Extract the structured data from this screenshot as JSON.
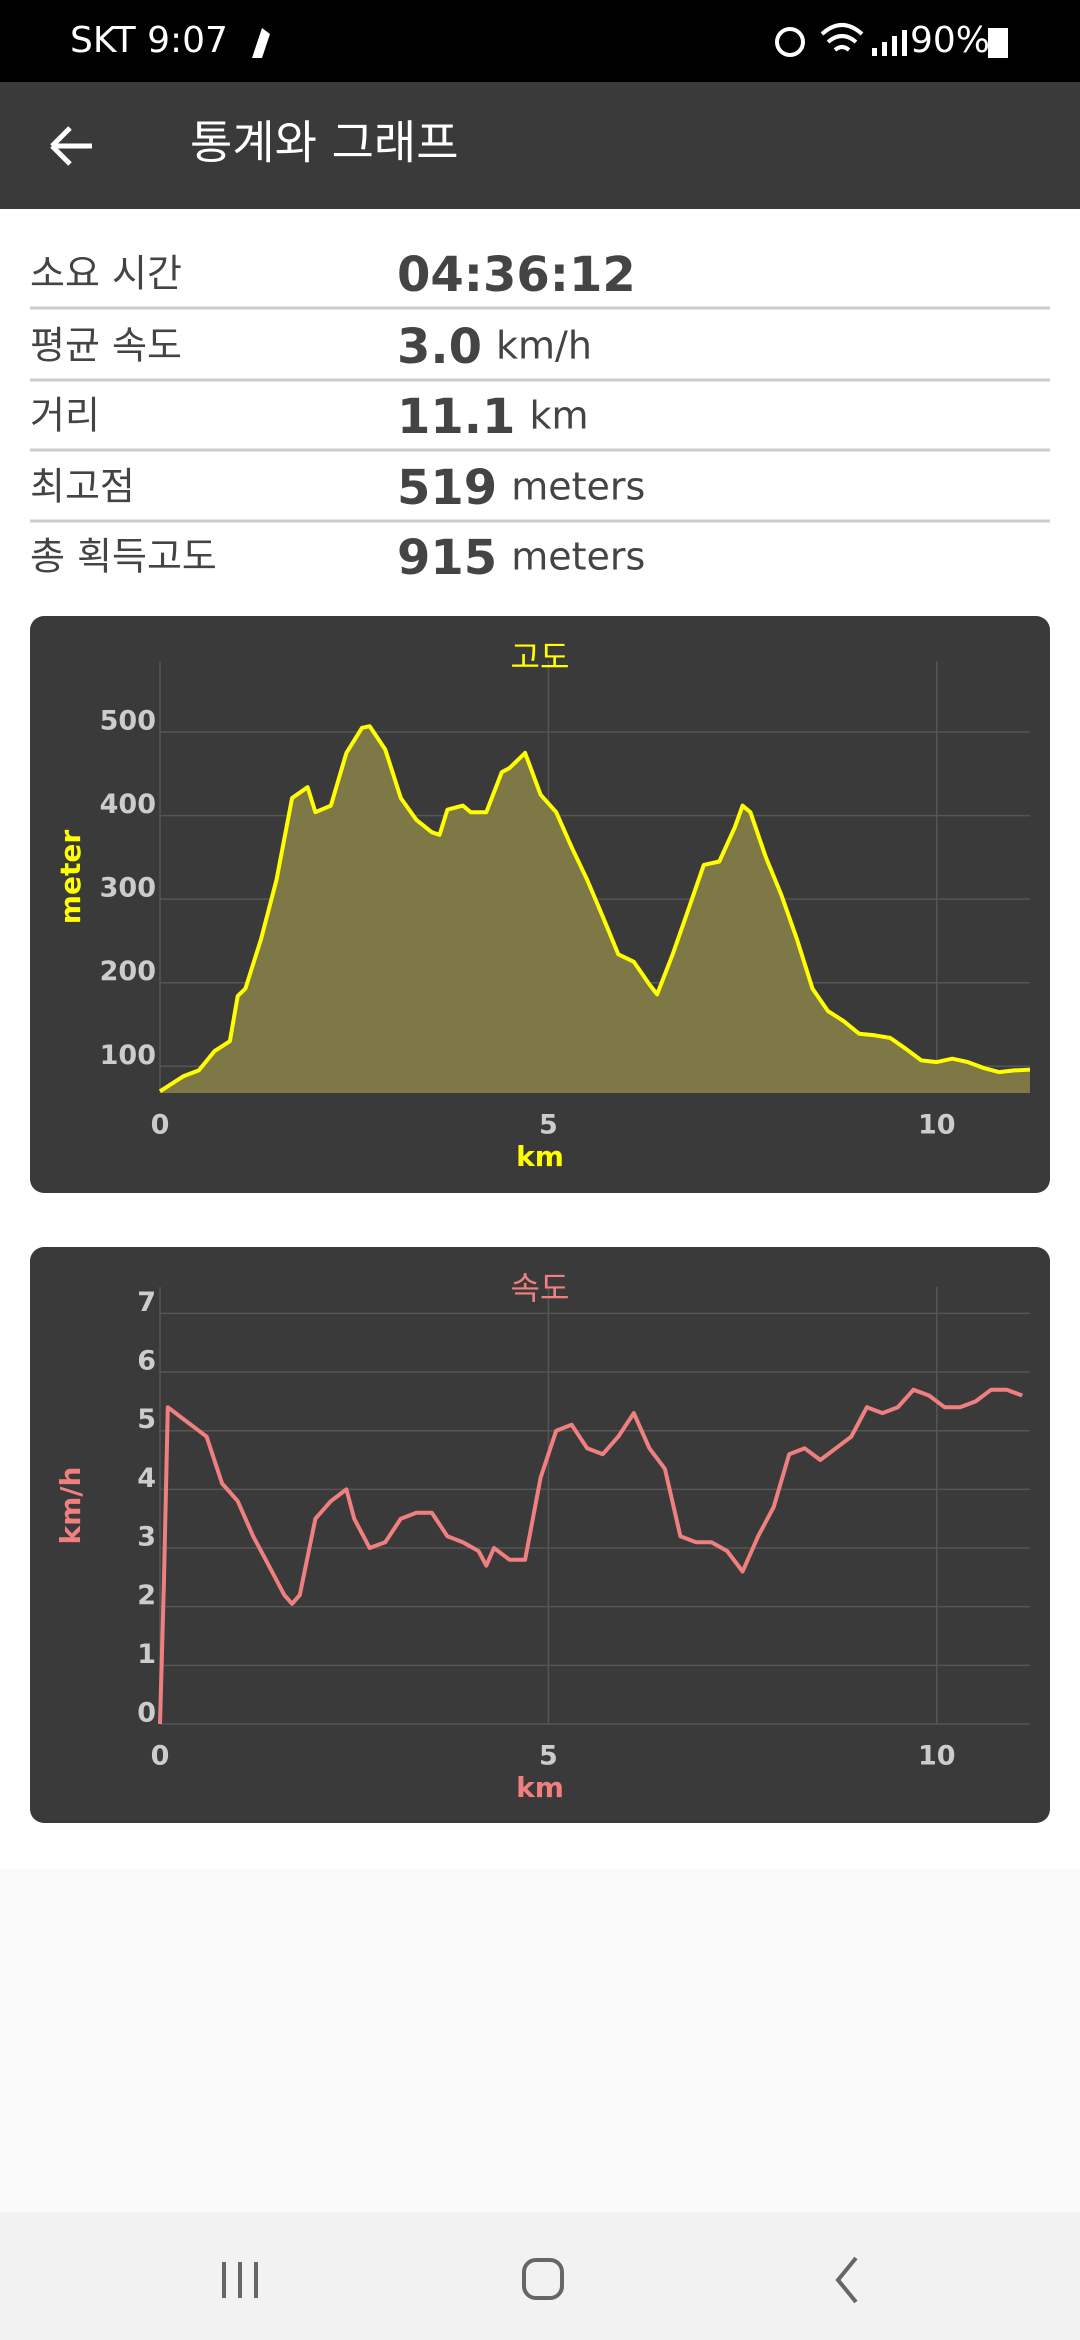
{
  "status_bar": {
    "carrier_time": "SKT 9:07",
    "battery": "90%"
  },
  "header": {
    "title": "통계와 그래프"
  },
  "stats": [
    {
      "label": "소요 시간",
      "value": "04:36:12"
    },
    {
      "label": "평균 속도",
      "value": "3.0",
      "unit": "km/h"
    },
    {
      "label": "거리",
      "value": "11.1",
      "unit": "km"
    },
    {
      "label": "최고점",
      "value": "519",
      "unit": "meters"
    },
    {
      "label": "총 획득고도",
      "value": "915",
      "unit": "meters"
    }
  ],
  "chart_data": [
    {
      "type": "area",
      "title": "고도",
      "x_label": "km",
      "y_label": "meter",
      "color": "#ffff00",
      "fill_color": "#7d7845",
      "x": [
        0,
        0.3,
        0.5,
        0.7,
        0.9,
        1.0,
        1.1,
        1.3,
        1.5,
        1.7,
        1.9,
        2.0,
        2.2,
        2.4,
        2.6,
        2.7,
        2.9,
        3.1,
        3.3,
        3.5,
        3.6,
        3.7,
        3.9,
        4.0,
        4.2,
        4.4,
        4.5,
        4.7,
        4.9,
        5.1,
        5.3,
        5.5,
        5.7,
        5.9,
        6.1,
        6.3,
        6.4,
        6.6,
        6.8,
        7.0,
        7.2,
        7.4,
        7.5,
        7.6,
        7.8,
        8.0,
        8.2,
        8.4,
        8.6,
        8.8,
        9.0,
        9.2,
        9.4,
        9.6,
        9.8,
        10.0,
        10.2,
        10.4,
        10.6,
        10.8,
        11.0,
        11.2
      ],
      "values": [
        70,
        88,
        95,
        118,
        130,
        184,
        193,
        252,
        323,
        421,
        434,
        404,
        412,
        475,
        505,
        507,
        479,
        421,
        395,
        380,
        377,
        407,
        412,
        404,
        404,
        452,
        457,
        475,
        425,
        404,
        362,
        323,
        279,
        234,
        225,
        198,
        186,
        234,
        287,
        341,
        345,
        386,
        412,
        404,
        350,
        305,
        252,
        193,
        166,
        154,
        139,
        137,
        134,
        121,
        107,
        105,
        109,
        105,
        98,
        93,
        95,
        96
      ],
      "xlim": [
        0,
        11.2
      ],
      "xticks": [
        0,
        5,
        10
      ],
      "ylim": [
        68,
        585
      ],
      "yticks": [
        100,
        200,
        300,
        400,
        500
      ],
      "grid": true
    },
    {
      "type": "line",
      "title": "속도",
      "x_label": "km",
      "y_label": "km/h",
      "color": "#f08080",
      "x": [
        0,
        0.05,
        0.1,
        0.3,
        0.5,
        0.6,
        0.8,
        1.0,
        1.2,
        1.4,
        1.6,
        1.7,
        1.8,
        2.0,
        2.2,
        2.4,
        2.5,
        2.7,
        2.9,
        3.1,
        3.3,
        3.5,
        3.7,
        3.9,
        4.1,
        4.2,
        4.3,
        4.5,
        4.7,
        4.9,
        5.1,
        5.3,
        5.5,
        5.7,
        5.9,
        6.1,
        6.3,
        6.5,
        6.7,
        6.9,
        7.1,
        7.3,
        7.5,
        7.7,
        7.9,
        8.1,
        8.3,
        8.5,
        8.7,
        8.9,
        9.1,
        9.3,
        9.5,
        9.7,
        9.9,
        10.1,
        10.3,
        10.5,
        10.7,
        10.9,
        11.1
      ],
      "values": [
        0,
        2.4,
        5.4,
        5.2,
        5.0,
        4.9,
        4.1,
        3.8,
        3.2,
        2.7,
        2.2,
        2.05,
        2.2,
        3.5,
        3.8,
        4.0,
        3.5,
        3.0,
        3.1,
        3.5,
        3.6,
        3.6,
        3.2,
        3.1,
        2.95,
        2.7,
        3.0,
        2.8,
        2.8,
        4.2,
        5.0,
        5.1,
        4.7,
        4.6,
        4.9,
        5.3,
        4.7,
        4.35,
        3.2,
        3.1,
        3.1,
        2.95,
        2.6,
        3.2,
        3.7,
        4.6,
        4.7,
        4.5,
        4.7,
        4.9,
        5.4,
        5.3,
        5.4,
        5.7,
        5.6,
        5.4,
        5.4,
        5.5,
        5.7,
        5.7,
        5.6
      ],
      "xlim": [
        0,
        11.2
      ],
      "xticks": [
        0,
        5,
        10
      ],
      "ylim": [
        0,
        7.45
      ],
      "yticks": [
        0,
        1,
        2,
        3,
        4,
        5,
        6,
        7
      ],
      "grid": true
    }
  ]
}
